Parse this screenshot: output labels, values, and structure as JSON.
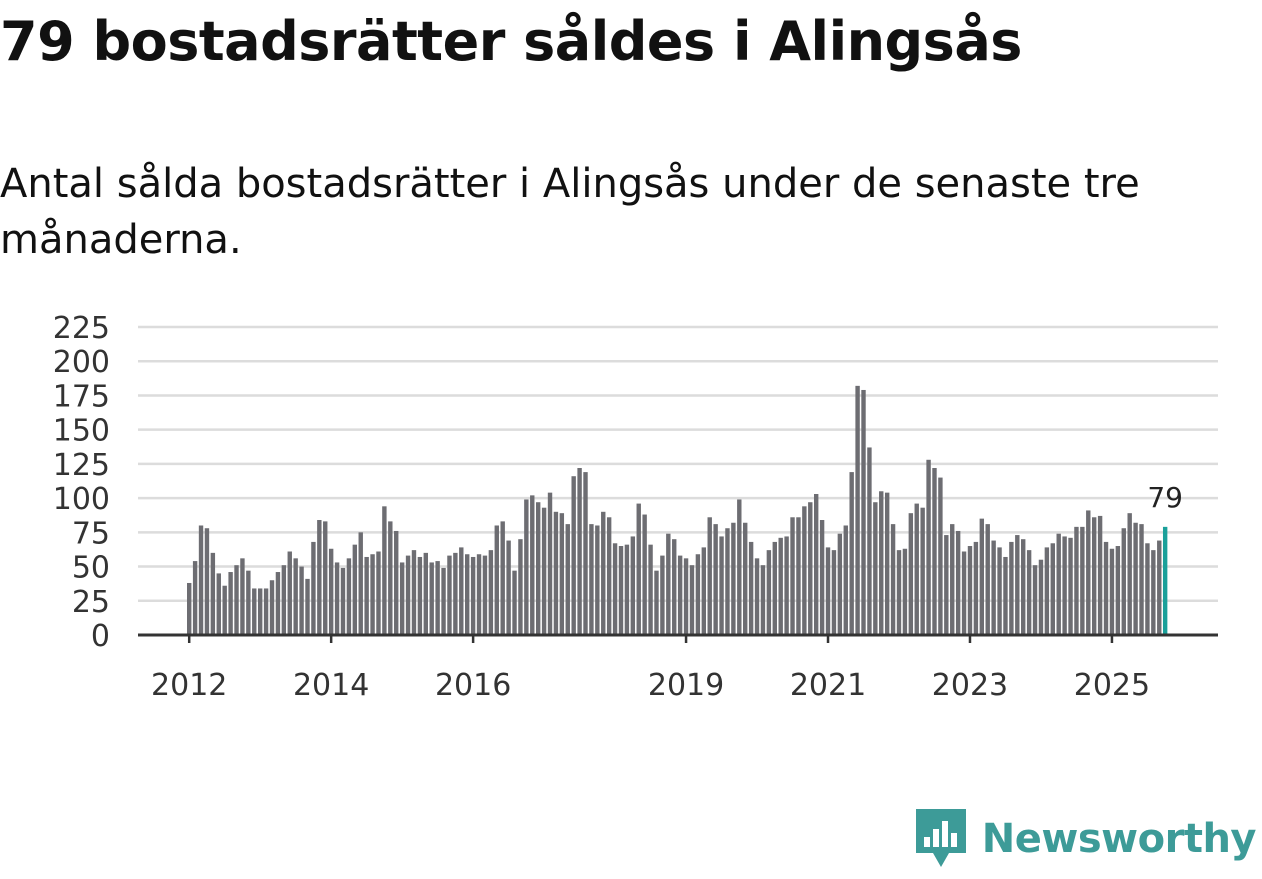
{
  "header": {
    "title": "79 bostadsrätter såldes i Alingsås",
    "subtitle": "Antal sålda bostadsrätter i Alingsås under de senaste tre månaderna."
  },
  "logo": {
    "text": "Newsworthy",
    "icon": "newsworthy-logo-icon"
  },
  "colors": {
    "bar": "#6d6d72",
    "highlight": "#1aa09a",
    "grid": "#dcdcdc",
    "axis": "#333333",
    "brand": "#3d9b98"
  },
  "chart_data": {
    "type": "bar",
    "title": "79 bostadsrätter såldes i Alingsås",
    "subtitle": "Antal sålda bostadsrätter i Alingsås under de senaste tre månaderna.",
    "xlabel": "",
    "ylabel": "",
    "ylim": [
      0,
      225
    ],
    "yticks": [
      0,
      25,
      50,
      75,
      100,
      125,
      150,
      175,
      200,
      225
    ],
    "ytick_labels": [
      "0",
      "25",
      "50",
      "75",
      "100",
      "125",
      "150",
      "175",
      "200",
      "225"
    ],
    "xticks": [
      {
        "label": "2012",
        "index": 0
      },
      {
        "label": "2014",
        "index": 24
      },
      {
        "label": "2016",
        "index": 48
      },
      {
        "label": "2019",
        "index": 84
      },
      {
        "label": "2021",
        "index": 108
      },
      {
        "label": "2023",
        "index": 132
      },
      {
        "label": "2025",
        "index": 156
      }
    ],
    "grid": true,
    "legend": "none",
    "highlight_index": 165,
    "annotation": {
      "text": "79",
      "index": 165
    },
    "values": [
      38,
      54,
      80,
      78,
      60,
      45,
      36,
      46,
      51,
      56,
      47,
      34,
      34,
      34,
      40,
      46,
      51,
      61,
      56,
      50,
      41,
      68,
      84,
      83,
      63,
      53,
      49,
      56,
      66,
      75,
      57,
      59,
      61,
      94,
      83,
      76,
      53,
      58,
      62,
      57,
      60,
      53,
      54,
      49,
      58,
      60,
      64,
      59,
      57,
      59,
      58,
      62,
      80,
      83,
      69,
      47,
      70,
      99,
      102,
      97,
      93,
      104,
      90,
      89,
      81,
      116,
      122,
      119,
      81,
      80,
      90,
      86,
      67,
      65,
      66,
      72,
      96,
      88,
      66,
      47,
      58,
      74,
      70,
      58,
      56,
      51,
      59,
      64,
      86,
      81,
      72,
      78,
      82,
      99,
      82,
      68,
      56,
      51,
      62,
      68,
      71,
      72,
      86,
      86,
      94,
      97,
      103,
      84,
      64,
      62,
      74,
      80,
      119,
      182,
      179,
      137,
      97,
      105,
      104,
      81,
      62,
      63,
      89,
      96,
      93,
      128,
      122,
      115,
      73,
      81,
      76,
      61,
      65,
      68,
      85,
      81,
      69,
      64,
      57,
      68,
      73,
      70,
      62,
      51,
      55,
      64,
      67,
      74,
      72,
      71,
      79,
      79,
      91,
      86,
      87,
      68,
      63,
      65,
      78,
      89,
      82,
      81,
      67,
      62,
      69,
      79
    ]
  }
}
